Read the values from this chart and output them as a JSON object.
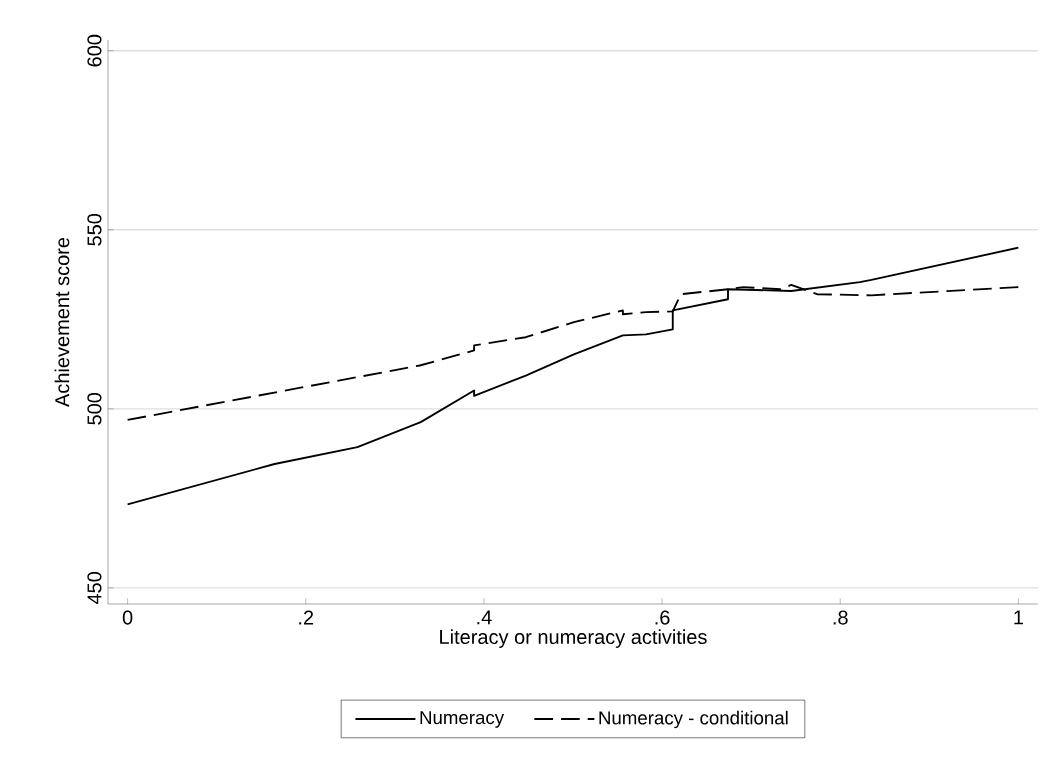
{
  "chart_data": {
    "type": "line",
    "xlabel": "Literacy or numeracy activities",
    "ylabel": "Achievement score",
    "xlim": [
      -0.022,
      1.022
    ],
    "ylim": [
      445.5,
      603
    ],
    "xticks": [
      0,
      {
        "value": 0.2,
        "label": ".2"
      },
      {
        "value": 0.4,
        "label": ".4"
      },
      {
        "value": 0.6,
        "label": ".6"
      },
      {
        "value": 0.8,
        "label": ".8"
      },
      1
    ],
    "yticks": [
      450,
      500,
      550,
      600
    ],
    "grid": "y",
    "legend": "bottom",
    "marker": "none",
    "series": [
      {
        "name": "Numeracy",
        "color": "#000000",
        "line_style": "solid",
        "x": [
          0,
          0.165,
          0.258,
          0.329,
          0.389,
          0.389,
          0.447,
          0.501,
          0.556,
          0.582,
          0.612,
          0.612,
          0.674,
          0.674,
          0.745,
          0.822,
          0.835,
          1
        ],
        "values": [
          473.3,
          484.6,
          489.3,
          496.3,
          505.1,
          503.6,
          509.3,
          515.2,
          520.5,
          520.8,
          522.2,
          527.5,
          530.6,
          533.4,
          532.9,
          535.4,
          536,
          545
        ]
      },
      {
        "name": "Numeracy - conditional",
        "color": "#000000",
        "line_style": "dashed",
        "x": [
          0,
          0.328,
          0.389,
          0.389,
          0.447,
          0.501,
          0.556,
          0.556,
          0.582,
          0.612,
          0.621,
          0.674,
          0.691,
          0.733,
          0.745,
          0.774,
          0.835,
          1
        ],
        "values": [
          496.9,
          512.1,
          516.3,
          517.7,
          520,
          524.2,
          527.5,
          526.4,
          527,
          527.2,
          532,
          533.4,
          534,
          533.4,
          534.6,
          532,
          531.7,
          534
        ]
      }
    ]
  }
}
